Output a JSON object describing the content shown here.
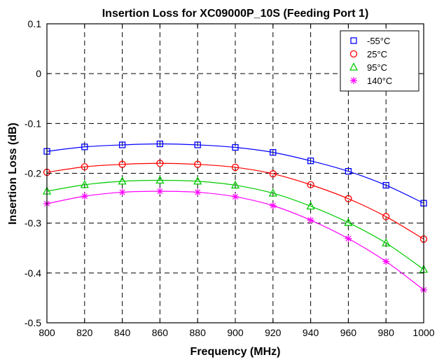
{
  "chart_data": {
    "type": "line",
    "title": "Insertion Loss for XC09000P_10S (Feeding Port 1)",
    "xlabel": "Frequency (MHz)",
    "ylabel": "Insertion Loss (dB)",
    "xlim": [
      800,
      1000
    ],
    "ylim": [
      -0.5,
      0.1
    ],
    "x": [
      800,
      820,
      840,
      860,
      880,
      900,
      920,
      940,
      960,
      980,
      1000
    ],
    "x_ticks": [
      "800",
      "820",
      "840",
      "860",
      "880",
      "900",
      "920",
      "940",
      "960",
      "980",
      "1000"
    ],
    "y_ticks": [
      "0.1",
      "0",
      "-0.1",
      "-0.2",
      "-0.3",
      "-0.4",
      "-0.5"
    ],
    "y_tick_values": [
      0.1,
      0,
      -0.1,
      -0.2,
      -0.3,
      -0.4,
      -0.5
    ],
    "grid": true,
    "grid_style": "dashed",
    "legend_position": "top-right",
    "series": [
      {
        "name": "-55°C",
        "color": "#0000ff",
        "marker": "square",
        "values": [
          -0.156,
          -0.147,
          -0.143,
          -0.141,
          -0.143,
          -0.148,
          -0.158,
          -0.175,
          -0.196,
          -0.224,
          -0.26
        ]
      },
      {
        "name": "25°C",
        "color": "#ff0000",
        "marker": "circle",
        "values": [
          -0.198,
          -0.187,
          -0.182,
          -0.18,
          -0.182,
          -0.188,
          -0.201,
          -0.223,
          -0.251,
          -0.287,
          -0.332
        ]
      },
      {
        "name": "95°C",
        "color": "#00cc00",
        "marker": "triangle",
        "values": [
          -0.236,
          -0.223,
          -0.216,
          -0.214,
          -0.216,
          -0.224,
          -0.24,
          -0.266,
          -0.299,
          -0.34,
          -0.393
        ]
      },
      {
        "name": "140°C",
        "color": "#ff00ff",
        "marker": "star",
        "values": [
          -0.261,
          -0.246,
          -0.238,
          -0.236,
          -0.238,
          -0.247,
          -0.265,
          -0.294,
          -0.331,
          -0.377,
          -0.434
        ]
      }
    ]
  }
}
